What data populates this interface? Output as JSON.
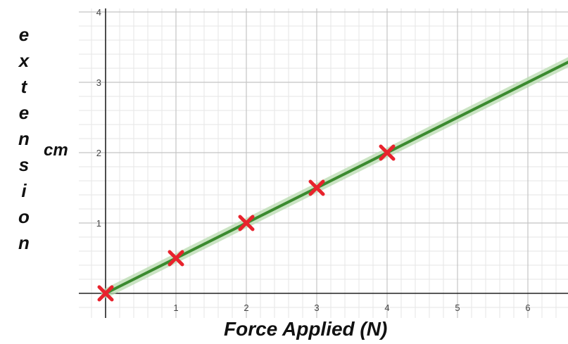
{
  "chart_data": {
    "type": "scatter",
    "xlabel": "Force Applied (N)",
    "ylabel": "extension",
    "ylabel_unit": "cm",
    "xlim": [
      -0.35,
      6.55
    ],
    "ylim": [
      -0.4,
      4.0
    ],
    "x_ticks": [
      "1",
      "2",
      "3",
      "4",
      "5",
      "6"
    ],
    "y_ticks": [
      "1",
      "2",
      "3",
      "4"
    ],
    "grid": true,
    "series": [
      {
        "marker": "x",
        "color": "#e8232d",
        "points": [
          {
            "x": 0,
            "y": 0
          },
          {
            "x": 1,
            "y": 0.5
          },
          {
            "x": 2,
            "y": 1.0
          },
          {
            "x": 3,
            "y": 1.5
          },
          {
            "x": 4,
            "y": 2.0
          }
        ]
      }
    ],
    "trendline": {
      "color": "#3b8a2f",
      "halo_color": "#b9dcb0",
      "slope": 0.5,
      "intercept": 0
    }
  }
}
